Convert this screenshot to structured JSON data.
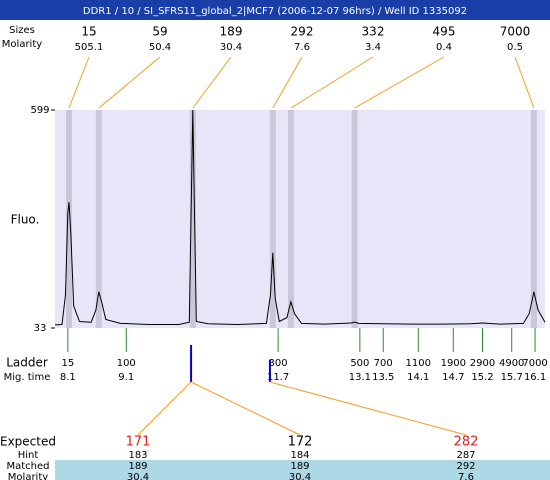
{
  "title": "DDR1 / 10 / SI_SFRS11_global_2|MCF7 (2006-12-07 96hrs) / Well ID 1335092",
  "chart_data": {
    "type": "electropherogram",
    "y_label": "Fluo.",
    "ylim": [
      33,
      599
    ],
    "yticks": [
      33,
      599
    ],
    "xlim": [
      7.88,
      16.27
    ],
    "peaks": {
      "size_label": "Sizes",
      "molarity_label": "Molarity",
      "sizes": [
        15,
        59,
        189,
        292,
        332,
        495,
        7000
      ],
      "molarity": [
        505.1,
        50.4,
        30.4,
        7.6,
        3.4,
        0.4,
        0.5
      ],
      "x": [
        8.12,
        8.63,
        10.24,
        11.61,
        11.92,
        13.01,
        16.08
      ],
      "color": "#f0a020",
      "band_color": "#c8c8d8"
    },
    "trace": {
      "color": "#000000",
      "x": [
        7.88,
        8.0,
        8.06,
        8.1,
        8.12,
        8.15,
        8.2,
        8.3,
        8.5,
        8.58,
        8.63,
        8.68,
        8.75,
        9.0,
        9.5,
        10.0,
        10.18,
        10.24,
        10.3,
        10.5,
        11.0,
        11.5,
        11.57,
        11.61,
        11.65,
        11.72,
        11.85,
        11.92,
        11.98,
        12.1,
        12.5,
        12.95,
        13.01,
        13.08,
        13.5,
        14.0,
        14.5,
        15.0,
        15.2,
        15.5,
        15.9,
        16.0,
        16.08,
        16.15,
        16.27
      ],
      "values": [
        41,
        42,
        120,
        330,
        360,
        280,
        90,
        50,
        48,
        80,
        127,
        100,
        55,
        45,
        42,
        42,
        48,
        599,
        50,
        44,
        42,
        45,
        120,
        228,
        110,
        50,
        60,
        101,
        70,
        45,
        43,
        46,
        48,
        45,
        44,
        43,
        43,
        44,
        46,
        43,
        45,
        70,
        127,
        80,
        48
      ]
    },
    "ladder": {
      "label": "Ladder",
      "time_label": "Mig. time",
      "color": "#2a8a2a",
      "sizes": [
        15,
        100,
        300,
        500,
        700,
        1100,
        1900,
        2900,
        4900,
        7000
      ],
      "x": [
        8.1,
        9.1,
        11.7,
        13.1,
        13.5,
        14.1,
        14.7,
        15.2,
        15.7,
        16.1
      ]
    },
    "markers": {
      "x": [
        10.21,
        11.56
      ],
      "color": "#0000cc"
    }
  },
  "expected_table": {
    "row_labels": [
      "Expected",
      "Hint",
      "Matched",
      "Molarity"
    ],
    "columns": [
      {
        "expected": 171,
        "hint": 183,
        "matched": 189,
        "molarity": 30.4,
        "color": "#e02020"
      },
      {
        "expected": 172,
        "hint": 184,
        "matched": 189,
        "molarity": 30.4,
        "color": "#000000"
      },
      {
        "expected": 282,
        "hint": 287,
        "matched": 292,
        "molarity": 7.6,
        "color": "#e02020"
      }
    ]
  }
}
